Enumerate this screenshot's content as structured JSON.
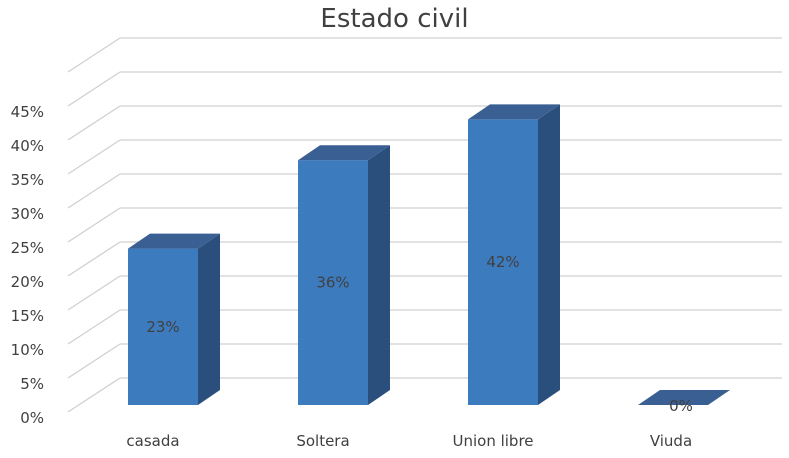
{
  "chart_data": {
    "type": "bar",
    "style": "3d-column",
    "title": "Estado civil",
    "categories": [
      "casada",
      "Soltera",
      "Union libre",
      "Viuda"
    ],
    "values": [
      23,
      36,
      42,
      0
    ],
    "data_labels": [
      "23%",
      "36%",
      "42%",
      "0%"
    ],
    "ylim": [
      0,
      50
    ],
    "yticks": [
      0,
      5,
      10,
      15,
      20,
      25,
      30,
      35,
      40,
      45
    ],
    "ytick_labels": [
      "0%",
      "5%",
      "10%",
      "15%",
      "20%",
      "25%",
      "30%",
      "35%",
      "40%",
      "45%"
    ],
    "xlabel": "",
    "ylabel": "",
    "grid": true,
    "legend": "none",
    "colors": {
      "bar_front": "#3d7bbf",
      "bar_side": "#2b4f7c",
      "bar_top": "#3a5f92",
      "gridline": "#d0d0d0",
      "text": "#404040"
    }
  }
}
